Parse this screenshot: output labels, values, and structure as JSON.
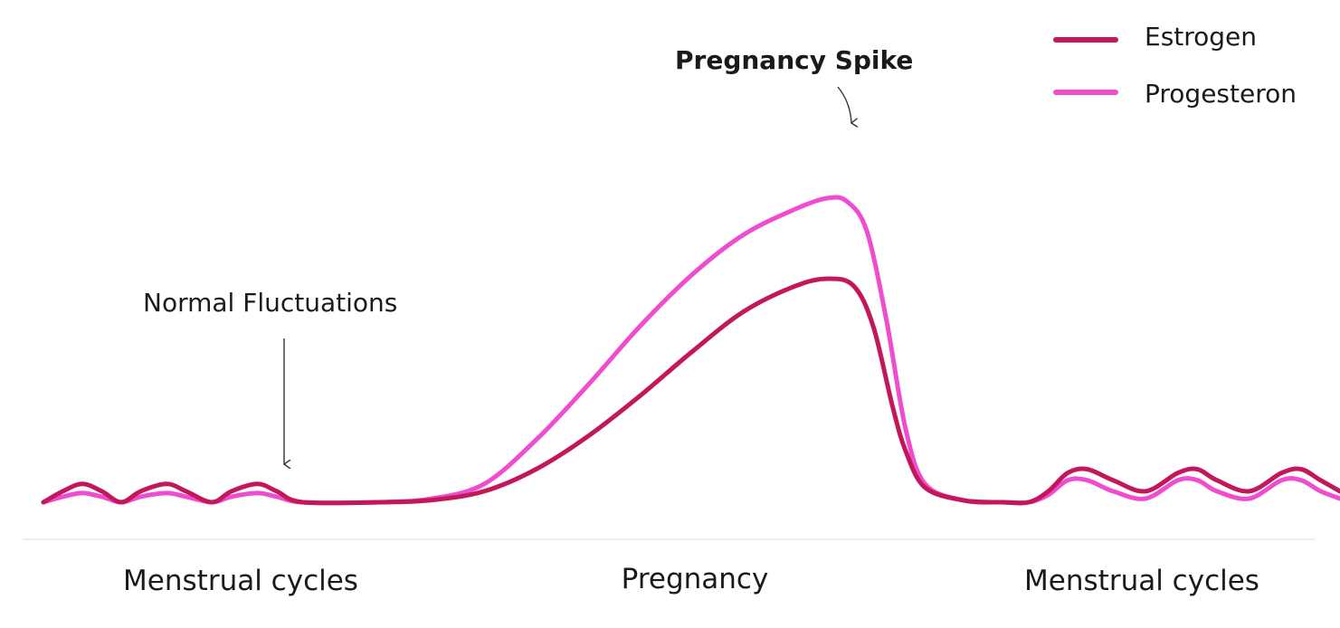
{
  "chart_data": {
    "type": "line",
    "title": "",
    "xlabel": "",
    "ylabel": "",
    "axes_visible": false,
    "grid": false,
    "baseline": true,
    "legend_position": "top-right",
    "phases": [
      "Menstrual cycles",
      "Pregnancy",
      "Menstrual cycles"
    ],
    "x_range": [
      0,
      100
    ],
    "y_range": [
      0,
      100
    ],
    "series": [
      {
        "name": "Estrogen",
        "color": "#c2185b",
        "points": [
          [
            0,
            0
          ],
          [
            1.5,
            3
          ],
          [
            3,
            5
          ],
          [
            4.5,
            3
          ],
          [
            6,
            0
          ],
          [
            7.5,
            3
          ],
          [
            9.5,
            5
          ],
          [
            11,
            3
          ],
          [
            13,
            0
          ],
          [
            14.5,
            3
          ],
          [
            16.5,
            5
          ],
          [
            18,
            3
          ],
          [
            20,
            0
          ],
          [
            26,
            0
          ],
          [
            30,
            0.6
          ],
          [
            34,
            3
          ],
          [
            38,
            9
          ],
          [
            42,
            18
          ],
          [
            46,
            29
          ],
          [
            50,
            41
          ],
          [
            54,
            52
          ],
          [
            58,
            59
          ],
          [
            60.5,
            61
          ],
          [
            62.5,
            59
          ],
          [
            64,
            48
          ],
          [
            65.5,
            26
          ],
          [
            66.5,
            14
          ],
          [
            68,
            4
          ],
          [
            71,
            0.5
          ],
          [
            74,
            0
          ],
          [
            76,
            0
          ],
          [
            77.5,
            3
          ],
          [
            79,
            8
          ],
          [
            80.5,
            9
          ],
          [
            82.5,
            6
          ],
          [
            85,
            3
          ],
          [
            87.5,
            8
          ],
          [
            89,
            9
          ],
          [
            90.5,
            6
          ],
          [
            93,
            3
          ],
          [
            95.5,
            8
          ],
          [
            97,
            9
          ],
          [
            98.5,
            6
          ],
          [
            100,
            3
          ]
        ]
      },
      {
        "name": "Progesteron",
        "color": "#f04ccf",
        "points": [
          [
            0,
            0
          ],
          [
            1.5,
            1.5
          ],
          [
            3,
            2.5
          ],
          [
            4.5,
            1.5
          ],
          [
            6,
            0
          ],
          [
            7.5,
            1.5
          ],
          [
            9.5,
            2.5
          ],
          [
            11,
            1.5
          ],
          [
            13,
            0
          ],
          [
            14.5,
            1.5
          ],
          [
            16.5,
            2.5
          ],
          [
            18,
            1.5
          ],
          [
            20,
            0
          ],
          [
            26,
            0
          ],
          [
            30,
            1
          ],
          [
            34,
            5
          ],
          [
            38,
            17
          ],
          [
            42,
            32
          ],
          [
            46,
            48
          ],
          [
            50,
            62
          ],
          [
            54,
            73
          ],
          [
            58,
            80
          ],
          [
            60.5,
            83
          ],
          [
            62,
            82
          ],
          [
            63.5,
            74
          ],
          [
            65,
            50
          ],
          [
            66.5,
            20
          ],
          [
            68,
            5
          ],
          [
            71,
            0.5
          ],
          [
            74,
            0
          ],
          [
            76,
            0
          ],
          [
            77.5,
            2
          ],
          [
            79,
            6
          ],
          [
            80.5,
            6
          ],
          [
            82.5,
            3
          ],
          [
            85,
            1
          ],
          [
            87.5,
            6
          ],
          [
            89,
            6
          ],
          [
            90.5,
            3
          ],
          [
            93,
            1
          ],
          [
            95.5,
            6
          ],
          [
            97,
            6
          ],
          [
            98.5,
            3
          ],
          [
            100,
            1
          ]
        ]
      }
    ],
    "annotations": [
      {
        "text": "Normal Fluctuations",
        "bold": false
      },
      {
        "text": "Pregnancy Spike",
        "bold": true
      }
    ]
  }
}
